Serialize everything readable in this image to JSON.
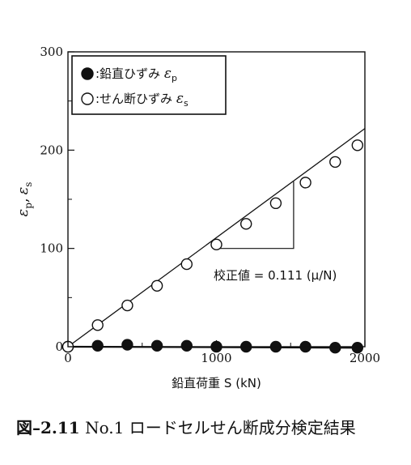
{
  "chart_data": {
    "type": "scatter",
    "xlabel": "鉛直荷重 S (kN)",
    "ylabel": "ε_p, ε_s",
    "ylabel_parts": {
      "eps": "ε",
      "sub_p": "p",
      "comma": ",",
      "sub_s": "s"
    },
    "xlim": [
      0,
      2000
    ],
    "ylim": [
      0,
      300
    ],
    "x_ticks": [
      0,
      1000,
      2000
    ],
    "y_ticks": [
      0,
      100,
      200,
      300
    ],
    "x_tick_labels": [
      "0",
      "1000",
      "2000"
    ],
    "y_tick_labels": [
      "0",
      "100",
      "200",
      "300"
    ],
    "legend_position": "top-left",
    "series": [
      {
        "name": ":鉛直ひずみ ε_p",
        "label_parts": {
          "text": ":鉛直ひずみ ",
          "eps": "ε",
          "sub": "p"
        },
        "marker": "filled-circle",
        "color": "#111111",
        "x": [
          0,
          200,
          400,
          600,
          800,
          1000,
          1200,
          1400,
          1600,
          1800,
          1950
        ],
        "y": [
          0,
          1,
          2,
          1,
          1,
          0,
          0,
          0,
          0,
          -1,
          -1
        ]
      },
      {
        "name": ":せん断ひずみ ε_s",
        "label_parts": {
          "text": ":せん断ひずみ ",
          "eps": "ε",
          "sub": "s"
        },
        "marker": "open-circle",
        "color": "#111111",
        "x": [
          0,
          200,
          400,
          600,
          800,
          1000,
          1200,
          1400,
          1600,
          1800,
          1950
        ],
        "y": [
          0,
          22,
          42,
          62,
          84,
          104,
          125,
          146,
          167,
          188,
          205
        ]
      }
    ],
    "fit_line": {
      "slope": 0.111,
      "x": [
        0,
        2000
      ],
      "y": [
        0,
        222
      ]
    },
    "slope_triangle": {
      "x1": 1000,
      "x2": 1520,
      "y_base": 100,
      "y_top": 168
    },
    "annotation": "校正値 = 0.111 (μ/N)"
  },
  "caption": {
    "number": "図–2.11",
    "text": "No.1 ロードセルせん断成分検定結果"
  }
}
